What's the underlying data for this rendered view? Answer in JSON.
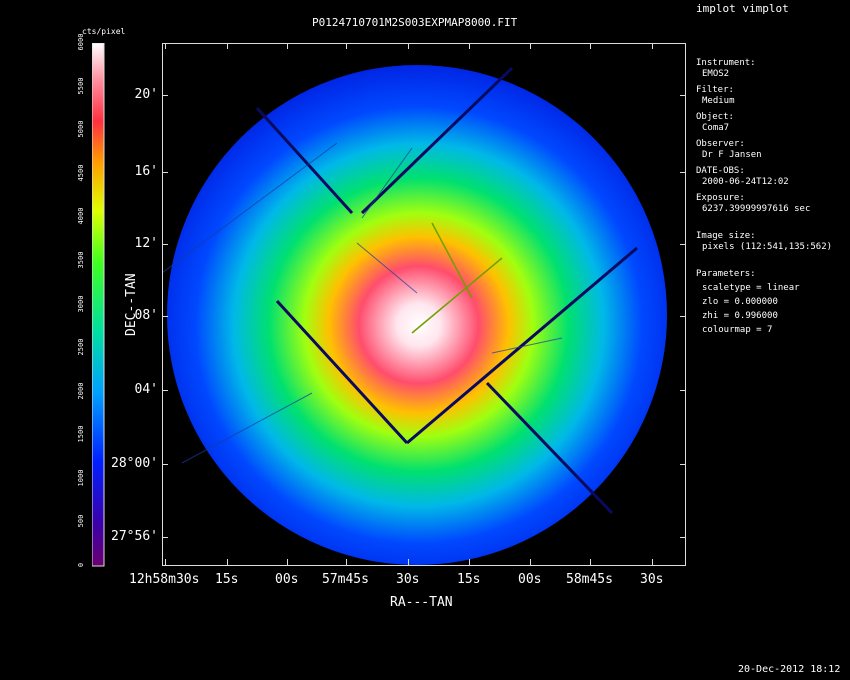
{
  "app": {
    "title": "implot vimplot"
  },
  "plot": {
    "filename": "P0124710701M2S003EXPMAP8000.FIT",
    "xlabel": "RA---TAN",
    "ylabel": "DEC--TAN",
    "x_ticks": [
      {
        "main": "12h58m30s",
        "sup1": "h",
        "sup2": "m",
        "sup3": "s",
        "pre": "12",
        "mid": "58",
        "mid2": "30"
      },
      {
        "label": "15",
        "sup": "s"
      },
      {
        "label": "00",
        "sup": "s"
      },
      {
        "label": "57m45s"
      },
      {
        "label": "30",
        "sup": "s"
      },
      {
        "label": "15",
        "sup": "s"
      },
      {
        "label": "00",
        "sup": "s"
      },
      {
        "label": "58m45s"
      },
      {
        "label": "30",
        "sup": "s"
      }
    ],
    "x_tick_text": [
      "12h58m30s",
      "15s",
      "00s",
      "57m45s",
      "30s",
      "15s",
      "00s",
      "58m45s",
      "30s"
    ],
    "y_tick_text": [
      "20'",
      "16'",
      "12'",
      "08'",
      "04'",
      "28°00'",
      "27°56'"
    ]
  },
  "colorbar": {
    "title": "cts/pixel",
    "ticks": [
      "0",
      "500",
      "1000",
      "1500",
      "2000",
      "2500",
      "3000",
      "3500",
      "4000",
      "4500",
      "5000",
      "5500",
      "6000"
    ]
  },
  "info": {
    "instrument_label": "Instrument:",
    "instrument": "EMOS2",
    "filter_label": "Filter:",
    "filter": "Medium",
    "object_label": "Object:",
    "object": "Coma7",
    "observer_label": "Observer:",
    "observer": "Dr F Jansen",
    "date_label": "DATE-OBS:",
    "date": "2000-06-24T12:02",
    "exposure_label": "Exposure:",
    "exposure": "6237.39999997616 sec",
    "imgsize_label": "Image size:",
    "imgsize": "pixels (112:541,135:562)",
    "params_label": "Parameters:",
    "scaletype": "scaletype = linear",
    "zlo": "zlo = 0.000000",
    "zhi": "zhi = 0.996000",
    "colourmap": "colourmap =   7"
  },
  "footer": {
    "timestamp": "20-Dec-2012 18:12"
  }
}
